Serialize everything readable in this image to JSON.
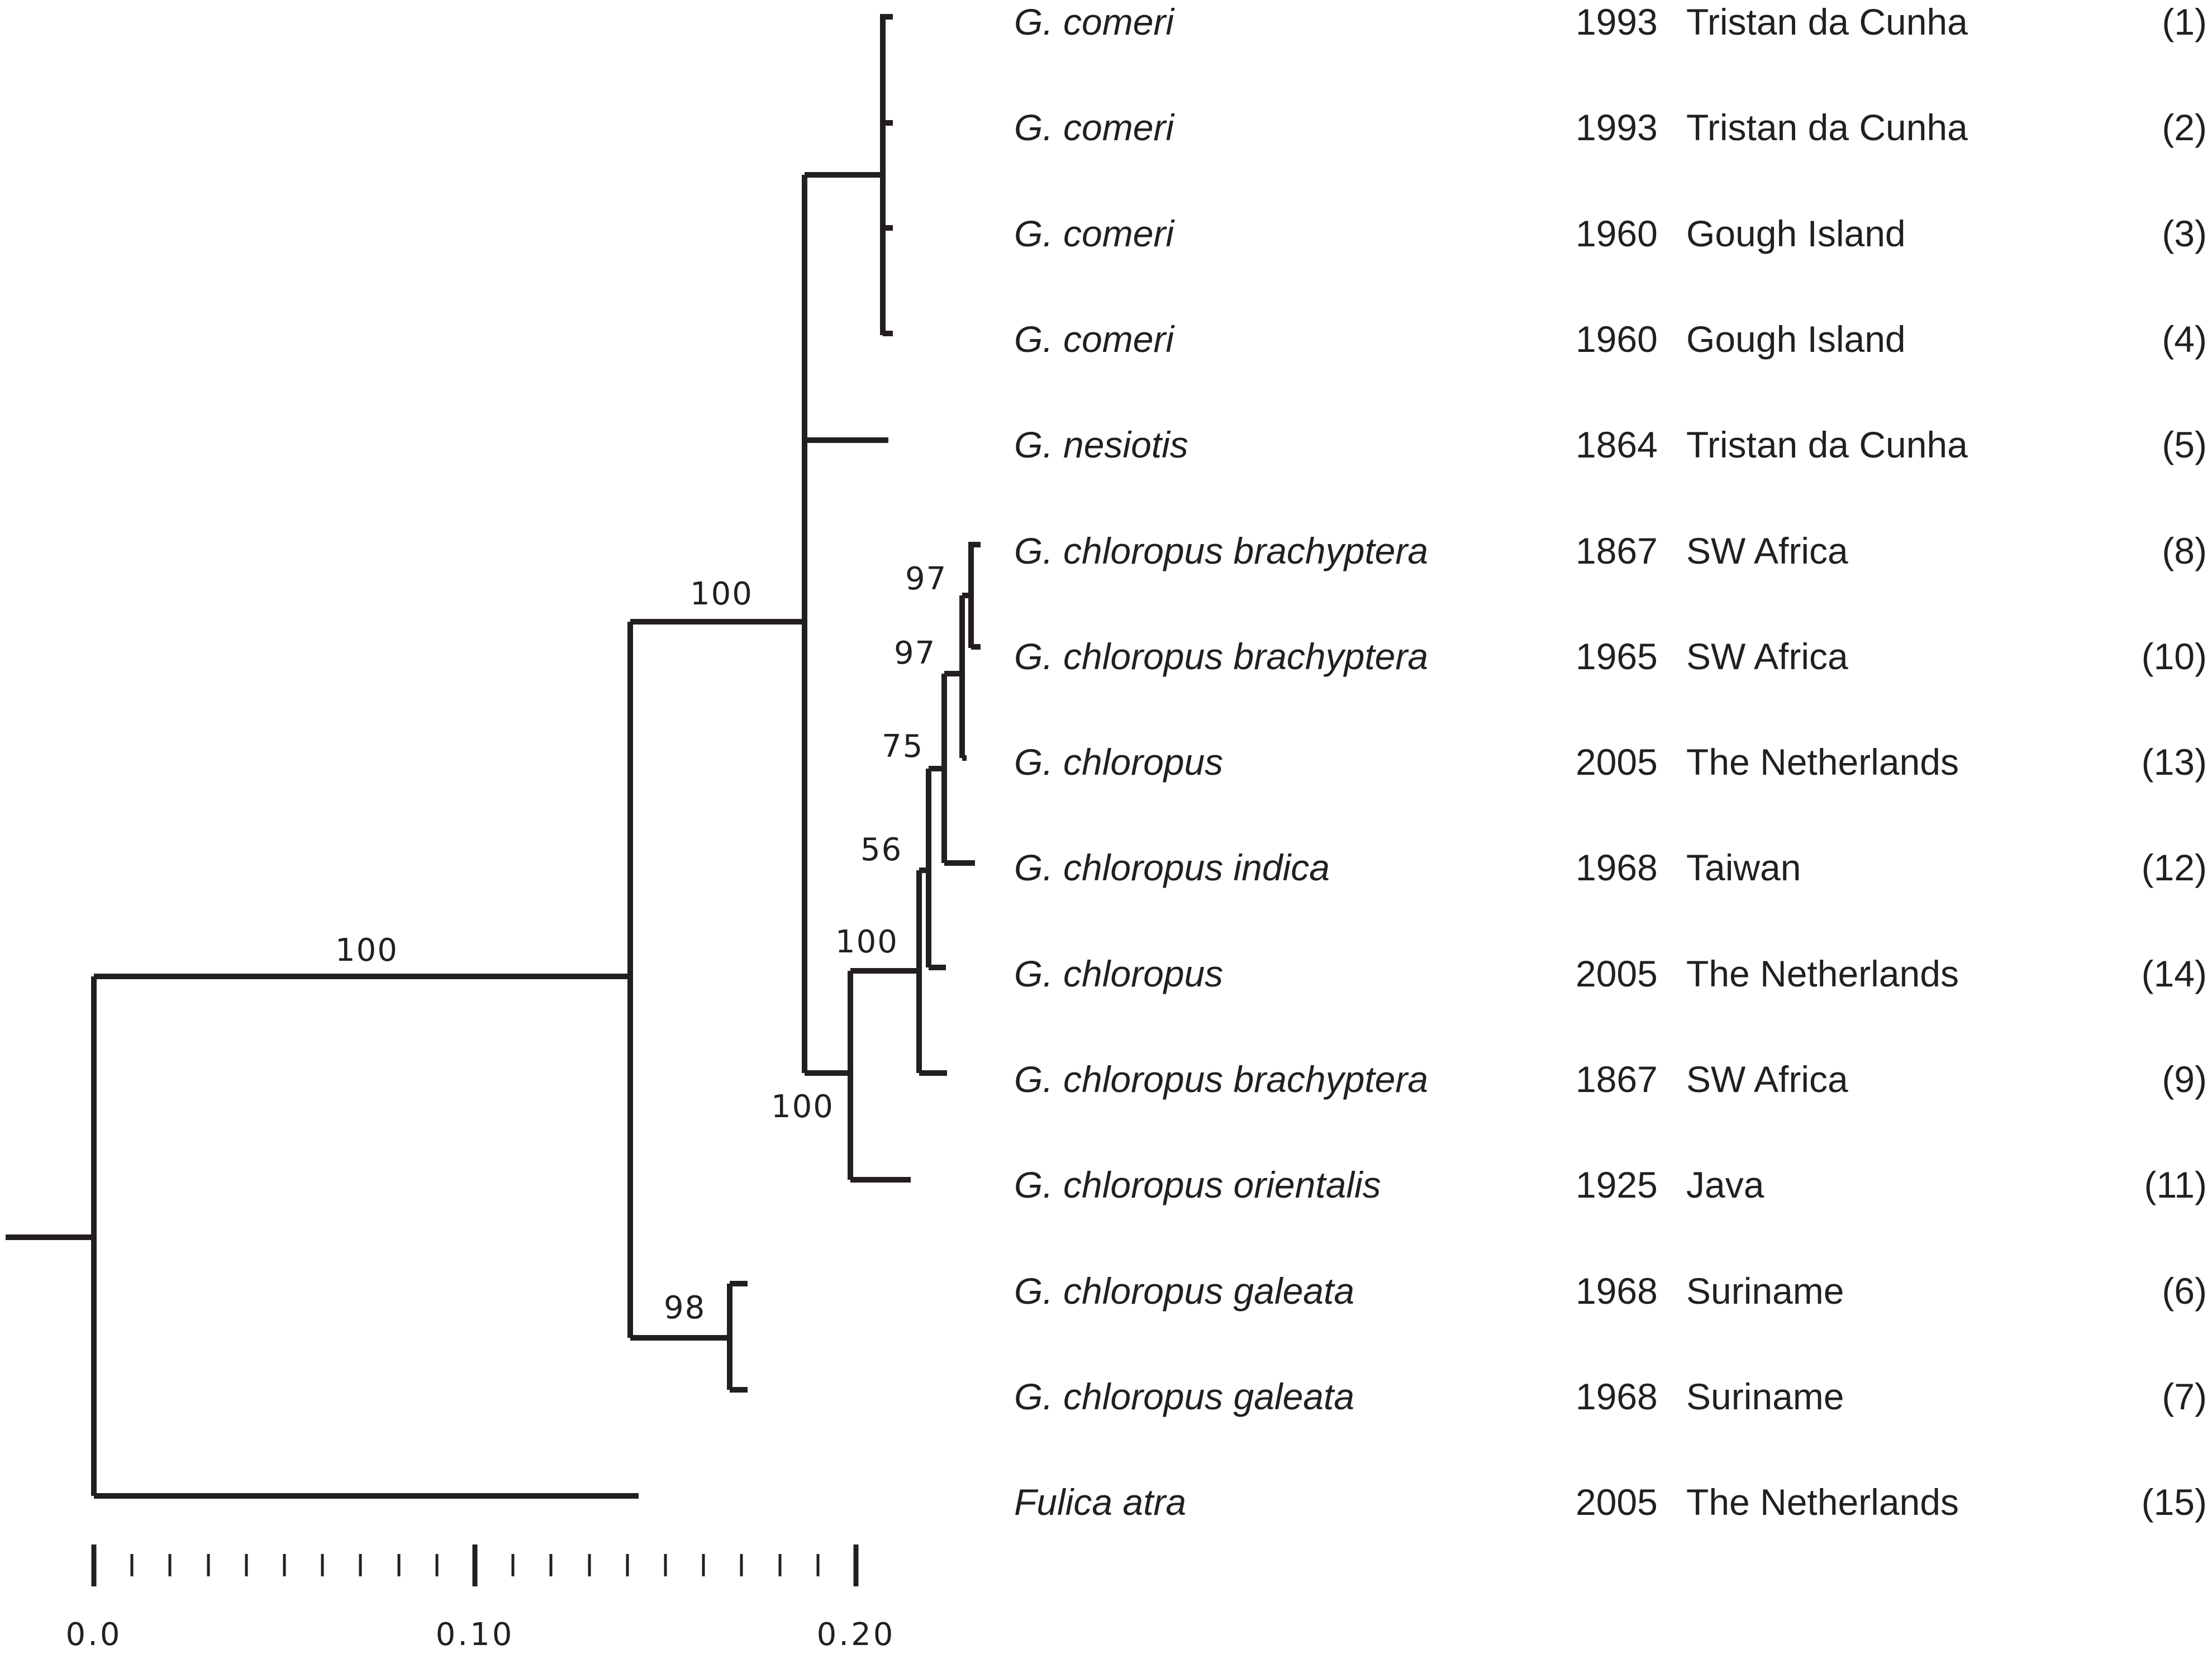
{
  "leaves": [
    {
      "taxon": "G. comeri",
      "year": "1993",
      "location": "Tristan da Cunha",
      "num": "(1)"
    },
    {
      "taxon": "G. comeri",
      "year": "1993",
      "location": "Tristan da Cunha",
      "num": "(2)"
    },
    {
      "taxon": "G. comeri",
      "year": "1960",
      "location": "Gough Island",
      "num": "(3)"
    },
    {
      "taxon": "G. comeri",
      "year": "1960",
      "location": "Gough Island",
      "num": "(4)"
    },
    {
      "taxon": "G. nesiotis",
      "year": "1864",
      "location": "Tristan da Cunha",
      "num": "(5)"
    },
    {
      "taxon": "G. chloropus brachyptera",
      "year": "1867",
      "location": "SW Africa",
      "num": "(8)"
    },
    {
      "taxon": "G. chloropus brachyptera",
      "year": "1965",
      "location": "SW Africa",
      "num": "(10)"
    },
    {
      "taxon": "G. chloropus",
      "year": "2005",
      "location": "The Netherlands",
      "num": "(13)"
    },
    {
      "taxon": "G. chloropus indica",
      "year": "1968",
      "location": "Taiwan",
      "num": "(12)"
    },
    {
      "taxon": "G. chloropus",
      "year": "2005",
      "location": "The Netherlands",
      "num": "(14)"
    },
    {
      "taxon": "G. chloropus brachyptera",
      "year": "1867",
      "location": "SW Africa",
      "num": "(9)"
    },
    {
      "taxon": "G. chloropus orientalis",
      "year": "1925",
      "location": "Java",
      "num": "(11)"
    },
    {
      "taxon": "G. chloropus galeata",
      "year": "1968",
      "location": "Suriname",
      "num": "(6)"
    },
    {
      "taxon": "G. chloropus galeata",
      "year": "1968",
      "location": "Suriname",
      "num": "(7)"
    },
    {
      "taxon": "Fulica atra",
      "year": "2005",
      "location": "The Netherlands",
      "num": "(15)"
    }
  ],
  "support_values": {
    "root_gallinula": "100",
    "gallinula_crown": "100",
    "south_atlantic_clade": "100",
    "chloropus_clade": "100",
    "node_56": "56",
    "node_75": "75",
    "node_97a": "97",
    "node_97b": "97",
    "galeata": "98"
  },
  "scale_axis": {
    "labels": [
      "0.0",
      "0.10",
      "0.20"
    ],
    "major_ticks": [
      0.0,
      0.1,
      0.2
    ],
    "minor_tick_step": 0.01
  },
  "colors": {
    "ink": "#231f20",
    "background": "#ffffff"
  }
}
